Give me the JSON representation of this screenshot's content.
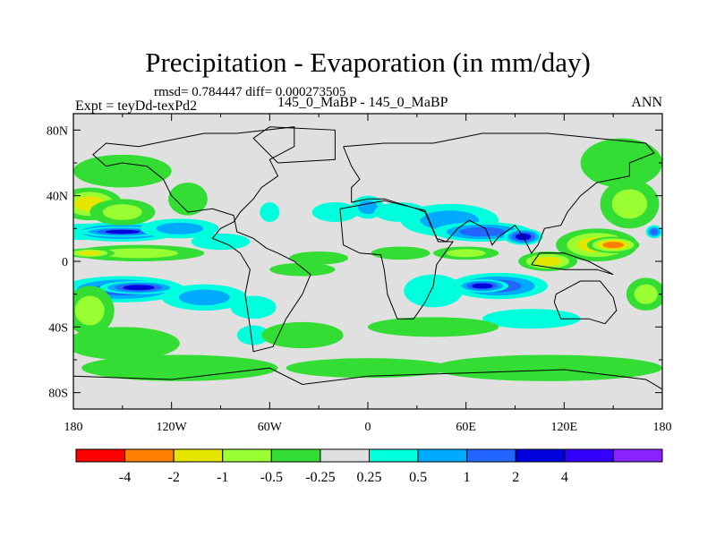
{
  "chart_data": {
    "type": "heatmap",
    "title": "Precipitation - Evaporation (in mm/day)",
    "stats_text": "rmsd= 0.784447  diff= 0.000273505",
    "subtitle": "145_0_MaBP - 145_0_MaBP",
    "left_label": "Expt = teyDd-texPd2",
    "right_label": "ANN",
    "x_range": [
      -180,
      180
    ],
    "y_range": [
      -90,
      90
    ],
    "x_ticks": [
      {
        "value": -180,
        "label": "180"
      },
      {
        "value": -120,
        "label": "120W"
      },
      {
        "value": -60,
        "label": "60W"
      },
      {
        "value": 0,
        "label": "0"
      },
      {
        "value": 60,
        "label": "60E"
      },
      {
        "value": 120,
        "label": "120E"
      },
      {
        "value": 180,
        "label": "180"
      }
    ],
    "y_ticks": [
      {
        "value": 80,
        "label": "80N"
      },
      {
        "value": 40,
        "label": "40N"
      },
      {
        "value": 0,
        "label": "0"
      },
      {
        "value": -40,
        "label": "40S"
      },
      {
        "value": -80,
        "label": "80S"
      }
    ],
    "colorbar": {
      "colors": [
        "#ff0000",
        "#ff8000",
        "#e6e600",
        "#99ff33",
        "#33dd33",
        "#e0e0e0",
        "#00ffdd",
        "#00aaff",
        "#2266ff",
        "#0000dd",
        "#3300ff",
        "#8822ff"
      ],
      "labels": [
        "-4",
        "-2",
        "-1",
        "-0.5",
        "-0.25",
        "0.25",
        "0.5",
        "1",
        "2",
        "4"
      ]
    },
    "regions": [
      {
        "lon": -170,
        "lat": 18,
        "rlon": 30,
        "rlat": 5,
        "level": 0.9
      },
      {
        "lon": -150,
        "lat": 18,
        "rlon": 35,
        "rlat": 6,
        "level": 0.8
      },
      {
        "lon": -150,
        "lat": 18,
        "rlon": 26,
        "rlat": 3,
        "level": 1.0
      },
      {
        "lon": -115,
        "lat": 20,
        "rlon": 24,
        "rlat": 6,
        "level": 0.6
      },
      {
        "lon": -90,
        "lat": 12,
        "rlon": 18,
        "rlat": 5,
        "level": 0.45
      },
      {
        "lon": -150,
        "lat": -17,
        "rlon": 38,
        "rlat": 8,
        "level": 0.8
      },
      {
        "lon": -140,
        "lat": -16,
        "rlon": 24,
        "rlat": 4,
        "level": 1.0
      },
      {
        "lon": -100,
        "lat": -22,
        "rlon": 26,
        "rlat": 8,
        "level": 0.6
      },
      {
        "lon": -70,
        "lat": -28,
        "rlon": 14,
        "rlat": 7,
        "level": 0.45
      },
      {
        "lon": 80,
        "lat": -15,
        "rlon": 30,
        "rlat": 8,
        "level": 0.8
      },
      {
        "lon": 70,
        "lat": -15,
        "rlon": 16,
        "rlat": 4,
        "level": 1.0
      },
      {
        "lon": 40,
        "lat": -18,
        "rlon": 18,
        "rlat": 10,
        "level": 0.45
      },
      {
        "lon": 50,
        "lat": 25,
        "rlon": 30,
        "rlat": 10,
        "level": 0.65
      },
      {
        "lon": 70,
        "lat": 18,
        "rlon": 30,
        "rlat": 6,
        "level": 0.85
      },
      {
        "lon": 95,
        "lat": 15,
        "rlon": 12,
        "rlat": 5,
        "level": 1.0
      },
      {
        "lon": -20,
        "lat": 30,
        "rlon": 14,
        "rlat": 6,
        "level": 0.45
      },
      {
        "lon": 0,
        "lat": 33,
        "rlon": 10,
        "rlat": 7,
        "level": 0.6
      },
      {
        "lon": 20,
        "lat": 30,
        "rlon": 16,
        "rlat": 6,
        "level": 0.5
      },
      {
        "lon": -60,
        "lat": 30,
        "rlon": 6,
        "rlat": 6,
        "level": 0.45
      },
      {
        "lon": -70,
        "lat": -45,
        "rlon": 10,
        "rlat": 6,
        "level": 0.45
      },
      {
        "lon": 100,
        "lat": -35,
        "rlon": 30,
        "rlat": 6,
        "level": 0.45
      },
      {
        "lon": 175,
        "lat": 18,
        "rlon": 5,
        "rlat": 4,
        "level": 0.9
      },
      {
        "lon": -170,
        "lat": 35,
        "rlon": 20,
        "rlat": 10,
        "level": -0.65
      },
      {
        "lon": -150,
        "lat": 30,
        "rlon": 20,
        "rlat": 8,
        "level": -0.45
      },
      {
        "lon": -110,
        "lat": 38,
        "rlon": 12,
        "rlat": 10,
        "level": -0.35
      },
      {
        "lon": -150,
        "lat": 55,
        "rlon": 30,
        "rlat": 10,
        "level": -0.35
      },
      {
        "lon": -140,
        "lat": 5,
        "rlon": 40,
        "rlat": 5,
        "level": -0.45
      },
      {
        "lon": -170,
        "lat": 5,
        "rlon": 15,
        "rlat": 3,
        "level": -0.65
      },
      {
        "lon": -170,
        "lat": -30,
        "rlon": 15,
        "rlat": 15,
        "level": -0.45
      },
      {
        "lon": -150,
        "lat": -50,
        "rlon": 35,
        "rlat": 10,
        "level": -0.35
      },
      {
        "lon": -115,
        "lat": -65,
        "rlon": 60,
        "rlat": 8,
        "level": -0.3
      },
      {
        "lon": 0,
        "lat": -65,
        "rlon": 50,
        "rlat": 6,
        "level": -0.3
      },
      {
        "lon": 110,
        "lat": -65,
        "rlon": 70,
        "rlat": 8,
        "level": -0.3
      },
      {
        "lon": 140,
        "lat": 10,
        "rlon": 25,
        "rlat": 10,
        "level": -0.65
      },
      {
        "lon": 150,
        "lat": 10,
        "rlon": 16,
        "rlat": 5,
        "level": -0.9
      },
      {
        "lon": 110,
        "lat": 0,
        "rlon": 18,
        "rlat": 6,
        "level": -0.6
      },
      {
        "lon": 170,
        "lat": -20,
        "rlon": 12,
        "rlat": 10,
        "level": -0.45
      },
      {
        "lon": 160,
        "lat": 35,
        "rlon": 18,
        "rlat": 15,
        "level": -0.45
      },
      {
        "lon": 155,
        "lat": 60,
        "rlon": 25,
        "rlat": 15,
        "level": -0.35
      },
      {
        "lon": -30,
        "lat": 2,
        "rlon": 18,
        "rlat": 4,
        "level": -0.35
      },
      {
        "lon": -40,
        "lat": -5,
        "rlon": 20,
        "rlat": 4,
        "level": -0.3
      },
      {
        "lon": 20,
        "lat": 5,
        "rlon": 18,
        "rlat": 4,
        "level": -0.35
      },
      {
        "lon": 60,
        "lat": 5,
        "rlon": 20,
        "rlat": 4,
        "level": -0.45
      },
      {
        "lon": 40,
        "lat": -40,
        "rlon": 40,
        "rlat": 6,
        "level": -0.35
      },
      {
        "lon": -40,
        "lat": -45,
        "rlon": 25,
        "rlat": 8,
        "level": -0.3
      }
    ],
    "coastline": [
      [
        [
          -100,
          78
        ],
        [
          -80,
          78
        ],
        [
          -45,
          82
        ],
        [
          -45,
          70
        ],
        [
          -60,
          62
        ],
        [
          -55,
          52
        ],
        [
          -65,
          45
        ],
        [
          -70,
          38
        ],
        [
          -78,
          30
        ],
        [
          -82,
          24
        ],
        [
          -90,
          20
        ],
        [
          -95,
          14
        ],
        [
          -85,
          10
        ],
        [
          -78,
          5
        ],
        [
          -72,
          -5
        ],
        [
          -75,
          -20
        ],
        [
          -72,
          -40
        ],
        [
          -70,
          -55
        ],
        [
          -58,
          -52
        ],
        [
          -50,
          -35
        ],
        [
          -40,
          -20
        ],
        [
          -35,
          -8
        ],
        [
          -45,
          0
        ],
        [
          -55,
          5
        ],
        [
          -62,
          8
        ],
        [
          -70,
          14
        ],
        [
          -80,
          18
        ],
        [
          -82,
          28
        ],
        [
          -95,
          32
        ],
        [
          -110,
          30
        ],
        [
          -120,
          40
        ],
        [
          -125,
          50
        ],
        [
          -135,
          58
        ],
        [
          -150,
          60
        ],
        [
          -160,
          58
        ],
        [
          -168,
          65
        ],
        [
          -160,
          72
        ],
        [
          -140,
          70
        ],
        [
          -120,
          74
        ],
        [
          -100,
          78
        ]
      ],
      [
        [
          -15,
          70
        ],
        [
          10,
          72
        ],
        [
          40,
          72
        ],
        [
          70,
          78
        ],
        [
          110,
          78
        ],
        [
          140,
          75
        ],
        [
          170,
          72
        ],
        [
          175,
          66
        ],
        [
          160,
          60
        ],
        [
          160,
          52
        ],
        [
          140,
          48
        ],
        [
          130,
          40
        ],
        [
          122,
          30
        ],
        [
          118,
          22
        ],
        [
          108,
          20
        ],
        [
          104,
          10
        ],
        [
          100,
          5
        ],
        [
          95,
          15
        ],
        [
          90,
          22
        ],
        [
          80,
          15
        ],
        [
          76,
          10
        ],
        [
          72,
          20
        ],
        [
          62,
          25
        ],
        [
          55,
          20
        ],
        [
          48,
          12
        ],
        [
          42,
          14
        ],
        [
          35,
          30
        ],
        [
          30,
          32
        ],
        [
          20,
          35
        ],
        [
          10,
          38
        ],
        [
          0,
          38
        ],
        [
          -10,
          36
        ],
        [
          -10,
          45
        ],
        [
          -5,
          50
        ],
        [
          -10,
          58
        ],
        [
          -15,
          70
        ]
      ],
      [
        [
          -17,
          32
        ],
        [
          10,
          37
        ],
        [
          35,
          31
        ],
        [
          43,
          12
        ],
        [
          52,
          12
        ],
        [
          42,
          -2
        ],
        [
          40,
          -15
        ],
        [
          35,
          -25
        ],
        [
          28,
          -35
        ],
        [
          18,
          -35
        ],
        [
          12,
          -20
        ],
        [
          10,
          -5
        ],
        [
          8,
          4
        ],
        [
          -5,
          5
        ],
        [
          -15,
          10
        ],
        [
          -17,
          32
        ]
      ],
      [
        [
          115,
          -20
        ],
        [
          130,
          -12
        ],
        [
          142,
          -12
        ],
        [
          150,
          -22
        ],
        [
          152,
          -30
        ],
        [
          145,
          -38
        ],
        [
          135,
          -35
        ],
        [
          118,
          -35
        ],
        [
          114,
          -25
        ],
        [
          115,
          -20
        ]
      ],
      [
        [
          -180,
          -70
        ],
        [
          -120,
          -72
        ],
        [
          -60,
          -65
        ],
        [
          -40,
          -75
        ],
        [
          0,
          -70
        ],
        [
          60,
          -68
        ],
        [
          120,
          -66
        ],
        [
          170,
          -72
        ],
        [
          180,
          -78
        ],
        [
          180,
          -90
        ],
        [
          -180,
          -90
        ],
        [
          -180,
          -70
        ]
      ],
      [
        [
          -55,
          60
        ],
        [
          -20,
          62
        ],
        [
          -20,
          80
        ],
        [
          -60,
          82
        ],
        [
          -70,
          75
        ],
        [
          -55,
          60
        ]
      ],
      [
        [
          100,
          -2
        ],
        [
          120,
          -5
        ],
        [
          140,
          -5
        ],
        [
          150,
          -8
        ],
        [
          135,
          0
        ],
        [
          120,
          5
        ],
        [
          105,
          5
        ],
        [
          100,
          -2
        ]
      ]
    ]
  }
}
